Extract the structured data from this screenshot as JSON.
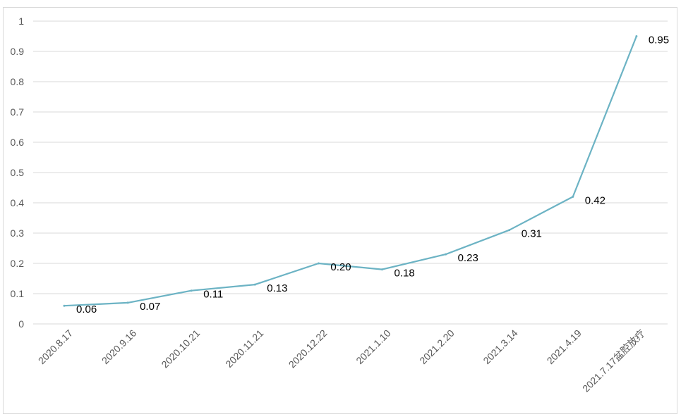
{
  "chart_data": {
    "type": "line",
    "title": "",
    "xlabel": "",
    "ylabel": "",
    "categories": [
      "2020.8.17",
      "2020.9.16",
      "2020.10.21",
      "2020.11.21",
      "2020.12.22",
      "2021.1.10",
      "2021.2.20",
      "2021.3.14",
      "2021.4.19",
      "2021.7.17盆腔放疗"
    ],
    "series": [
      {
        "values": [
          0.06,
          0.07,
          0.11,
          0.13,
          0.2,
          0.18,
          0.23,
          0.31,
          0.42,
          0.95
        ],
        "data_labels": [
          "0.06",
          "0.07",
          "0.11",
          "0.13",
          "0.20",
          "0.18",
          "0.23",
          "0.31",
          "0.42",
          "0.95"
        ]
      }
    ],
    "ylim": [
      0,
      1
    ],
    "yticks": [
      "0",
      "0.1",
      "0.2",
      "0.3",
      "0.4",
      "0.5",
      "0.6",
      "0.7",
      "0.8",
      "0.9",
      "1"
    ],
    "grid": true,
    "legend": "none",
    "colors": {
      "line": "#6cb3c4",
      "grid": "#d9d9d9",
      "axis_text": "#595959",
      "data_label": "#000000"
    }
  }
}
